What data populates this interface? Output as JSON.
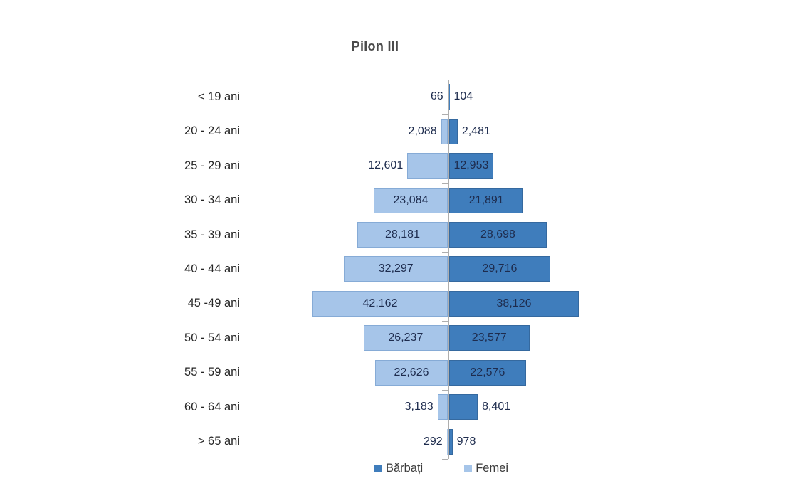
{
  "chart_data": {
    "type": "bar",
    "subtype": "population-pyramid",
    "title": "Pilon III",
    "categories": [
      "< 19 ani",
      "20 - 24 ani",
      "25 - 29 ani",
      "30 - 34 ani",
      "35 - 39 ani",
      "40 - 44 ani",
      "45 -49 ani",
      "50 - 54 ani",
      "55 - 59 ani",
      "60 - 64 ani",
      "> 65 ani"
    ],
    "series": [
      {
        "name": "Bărbați",
        "side": "right",
        "color": "#3f7dbc",
        "values": [
          104,
          2481,
          12953,
          21891,
          28698,
          29716,
          38126,
          23577,
          22576,
          8401,
          978
        ],
        "labels": [
          "104",
          "2,481",
          "12,953",
          "21,891",
          "28,698",
          "29,716",
          "38,126",
          "23,577",
          "22,576",
          "8,401",
          "978"
        ]
      },
      {
        "name": "Femei",
        "side": "left",
        "color": "#a6c5e9",
        "values": [
          66,
          2088,
          12601,
          23084,
          28181,
          32297,
          42162,
          26237,
          22626,
          3183,
          292
        ],
        "labels": [
          "66",
          "2,088",
          "12,601",
          "23,084",
          "28,181",
          "32,297",
          "42,162",
          "26,237",
          "22,626",
          "3,183",
          "292"
        ]
      }
    ],
    "legend": [
      "Bărbați",
      "Femei"
    ],
    "legend_position": "bottom",
    "grid": false,
    "axis": "center-vertical",
    "value_format": "thousands-comma",
    "text_colors": {
      "title": "#4a4a4a",
      "category_labels": "#262626",
      "value_labels": "#1e2c4e"
    }
  }
}
